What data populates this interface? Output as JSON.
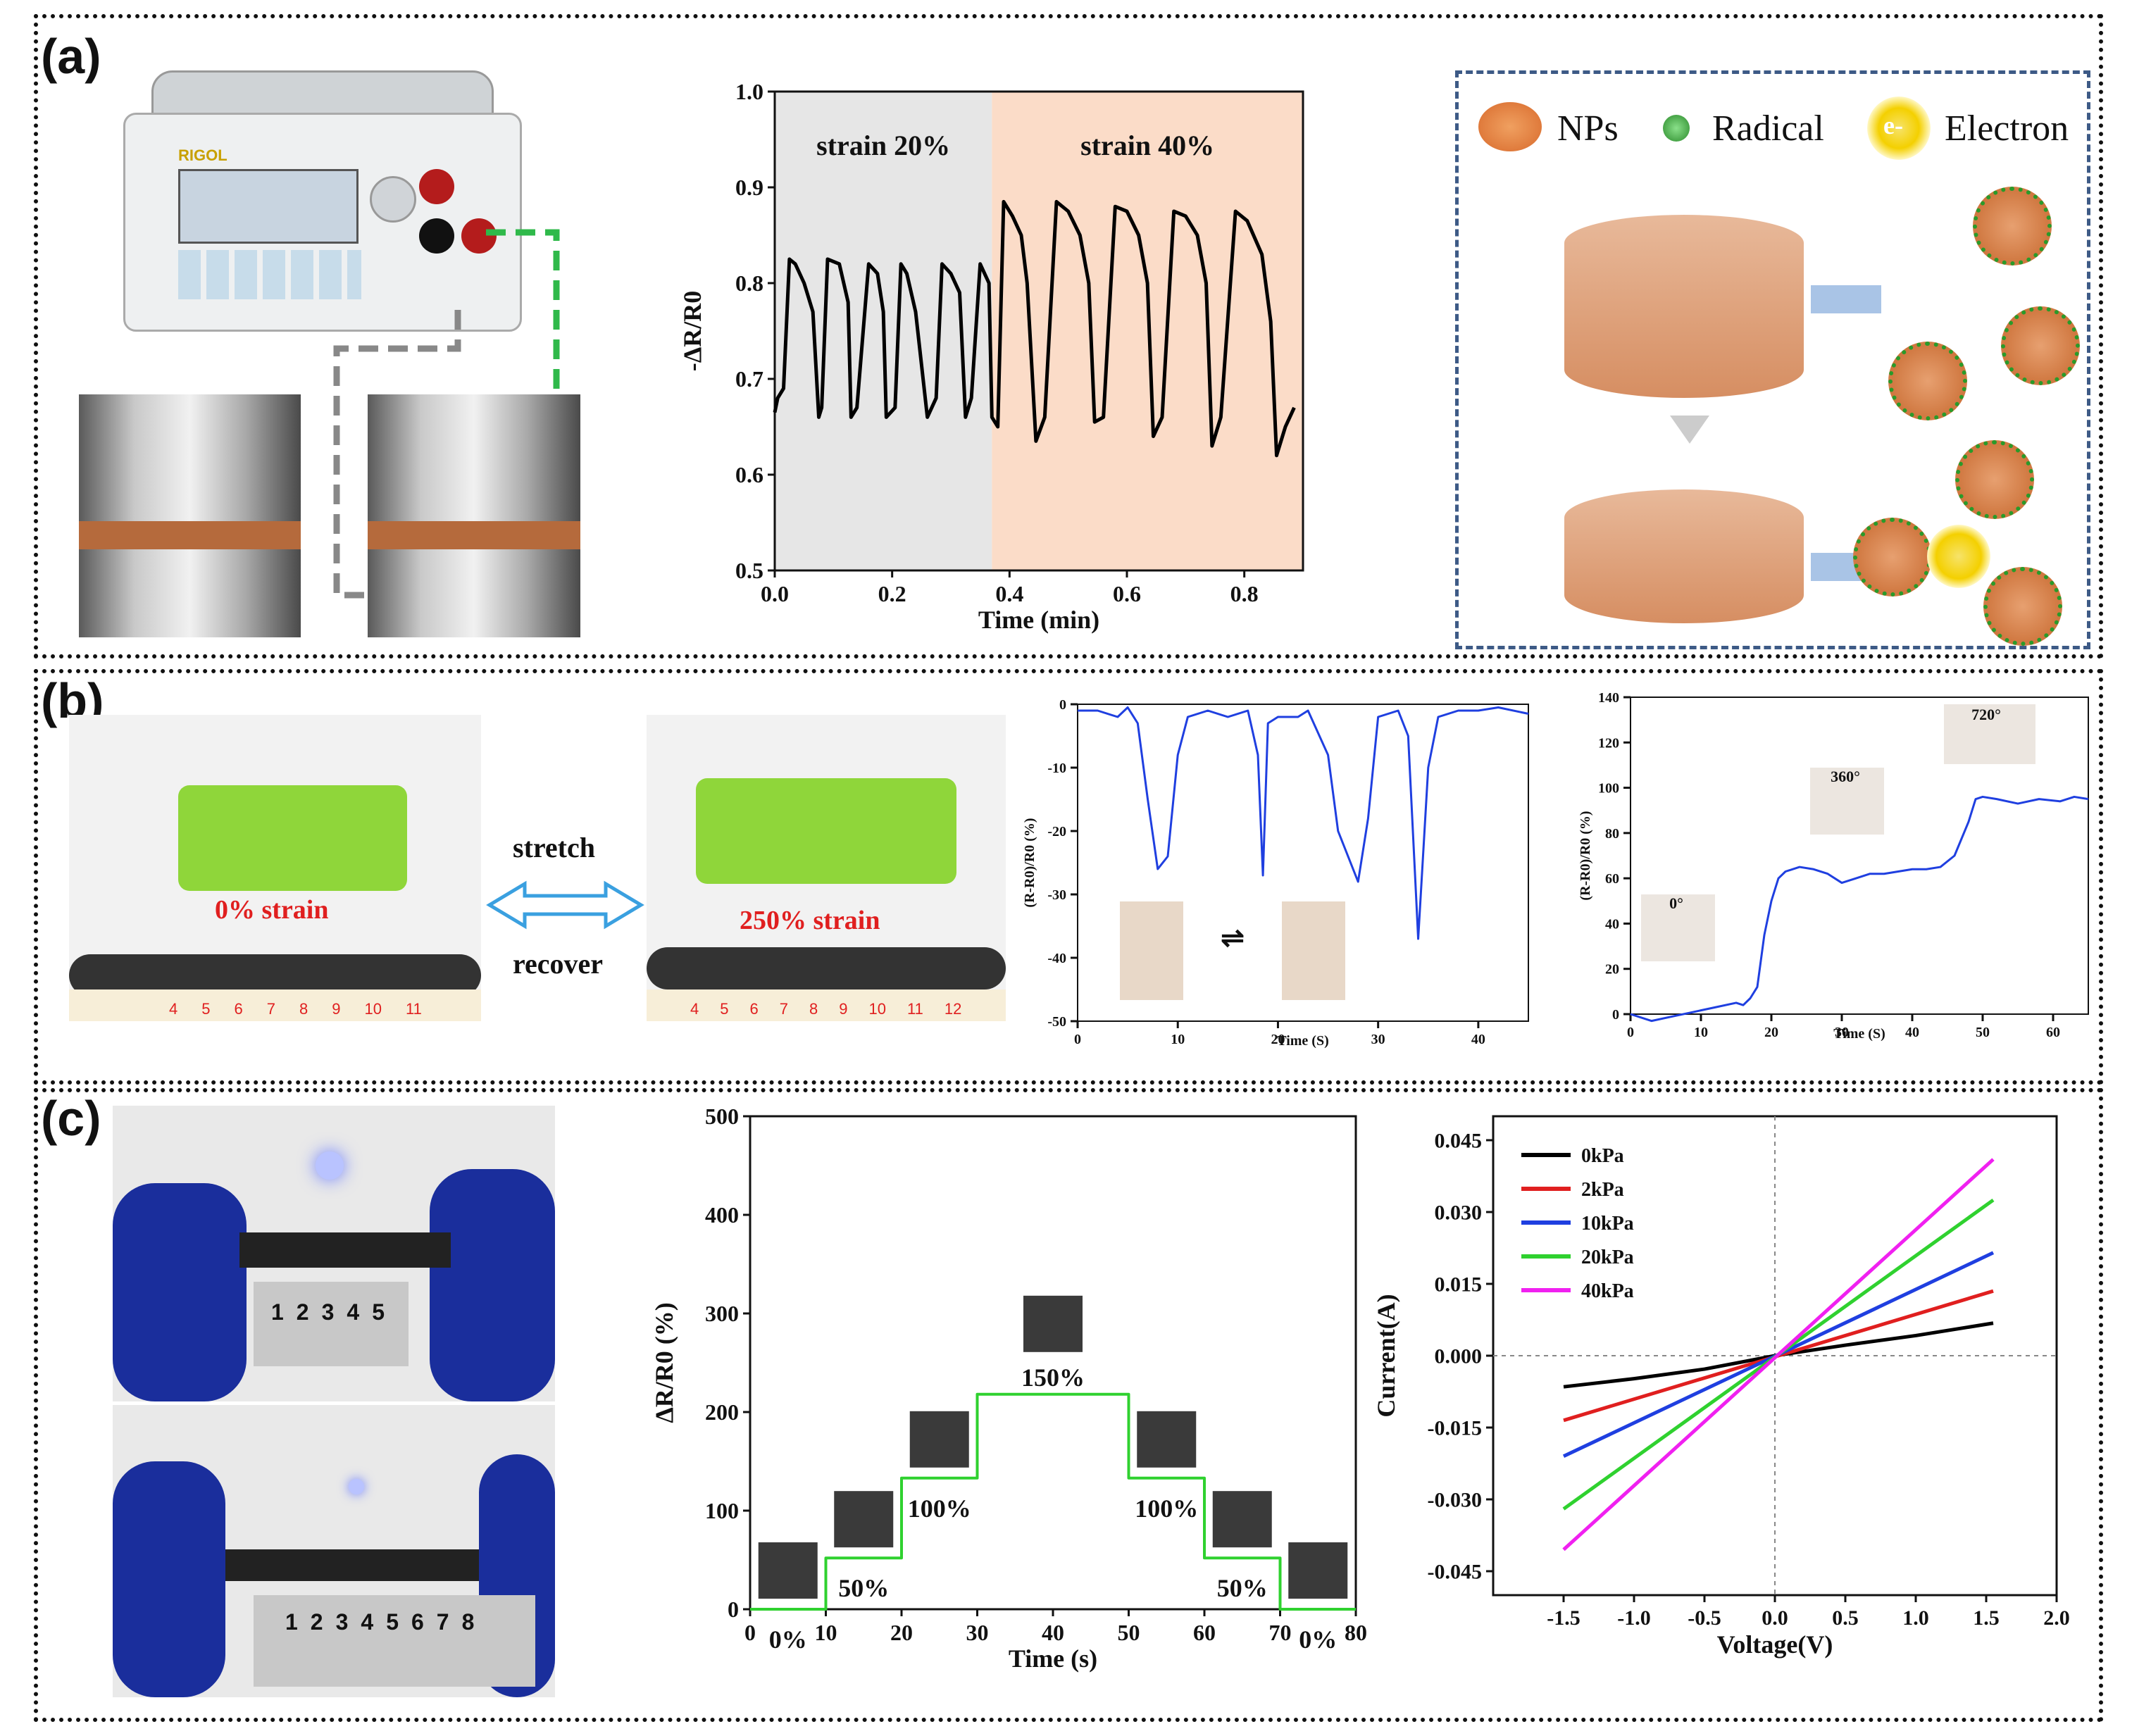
{
  "panels": {
    "a": "(a)",
    "b": "(b)",
    "c": "(c)"
  },
  "colors": {
    "black": "#000000",
    "blue": "#1f3fe0",
    "green": "#2fd12f",
    "red": "#e01f1f",
    "magenta": "#f020f0",
    "gray_zone": "#e6e6e6",
    "peach_zone": "#fbdcc8"
  },
  "panel_a": {
    "meter_brand": "RIGOL",
    "legend": {
      "nps": "NPs",
      "radical": "Radical",
      "electron": "Electron",
      "e_symbol": "e-"
    },
    "chart_data": {
      "type": "line",
      "title": "",
      "xlabel": "Time (min)",
      "ylabel": "-ΔR/R0",
      "xlim": [
        0.0,
        0.9
      ],
      "ylim": [
        0.5,
        1.0
      ],
      "xticks": [
        "0.0",
        "0.2",
        "0.4",
        "0.6",
        "0.8"
      ],
      "yticks": [
        "0.5",
        "0.6",
        "0.7",
        "0.8",
        "0.9",
        "1.0"
      ],
      "zone_split": 0.37,
      "annotations": [
        "strain 20%",
        "strain 40%"
      ],
      "series": [
        {
          "name": "-ΔR/R0",
          "x": [
            0.0,
            0.005,
            0.015,
            0.025,
            0.035,
            0.05,
            0.065,
            0.075,
            0.08,
            0.09,
            0.11,
            0.125,
            0.13,
            0.14,
            0.16,
            0.175,
            0.185,
            0.19,
            0.205,
            0.215,
            0.225,
            0.24,
            0.26,
            0.275,
            0.285,
            0.3,
            0.315,
            0.325,
            0.335,
            0.35,
            0.365,
            0.37,
            0.38,
            0.39,
            0.405,
            0.42,
            0.43,
            0.445,
            0.46,
            0.48,
            0.5,
            0.52,
            0.535,
            0.545,
            0.56,
            0.58,
            0.6,
            0.62,
            0.635,
            0.645,
            0.66,
            0.68,
            0.7,
            0.72,
            0.735,
            0.745,
            0.76,
            0.785,
            0.805,
            0.83,
            0.845,
            0.855,
            0.87,
            0.885
          ],
          "y": [
            0.665,
            0.68,
            0.69,
            0.825,
            0.82,
            0.8,
            0.77,
            0.66,
            0.67,
            0.825,
            0.82,
            0.78,
            0.66,
            0.67,
            0.82,
            0.81,
            0.77,
            0.66,
            0.67,
            0.82,
            0.81,
            0.77,
            0.66,
            0.68,
            0.82,
            0.81,
            0.79,
            0.66,
            0.68,
            0.82,
            0.8,
            0.66,
            0.65,
            0.885,
            0.87,
            0.85,
            0.8,
            0.635,
            0.66,
            0.885,
            0.875,
            0.85,
            0.8,
            0.655,
            0.66,
            0.88,
            0.875,
            0.85,
            0.8,
            0.64,
            0.66,
            0.875,
            0.87,
            0.85,
            0.8,
            0.63,
            0.66,
            0.875,
            0.865,
            0.83,
            0.76,
            0.62,
            0.65,
            0.67
          ]
        }
      ]
    }
  },
  "panel_b": {
    "stretch_label": "stretch",
    "recover_label": "recover",
    "strain_0": "0% strain",
    "strain_250": "250% strain",
    "ruler_left": [
      "4",
      "5",
      "6",
      "7",
      "8",
      "9",
      "10",
      "11"
    ],
    "ruler_right": [
      "4",
      "5",
      "6",
      "7",
      "8",
      "9",
      "10",
      "11",
      "12"
    ],
    "chart1": {
      "type": "line",
      "xlabel": "Time (S)",
      "ylabel": "(R-R0)/R0 (%)",
      "xlim": [
        0,
        45
      ],
      "ylim": [
        -50,
        0
      ],
      "xticks": [
        "0",
        "10",
        "20",
        "30",
        "40"
      ],
      "yticks": [
        "0",
        "-10",
        "-20",
        "-30",
        "-40",
        "-50"
      ],
      "series": [
        {
          "name": "blue",
          "x": [
            0,
            2,
            4,
            5,
            6,
            7,
            8,
            9,
            10,
            11,
            13,
            15,
            17,
            18,
            18.5,
            19,
            20,
            22,
            23,
            25,
            26,
            27,
            28,
            29,
            30,
            32,
            33,
            34,
            35,
            36,
            38,
            40,
            42,
            45
          ],
          "y": [
            -1,
            -1,
            -2,
            -0.5,
            -3,
            -15,
            -26,
            -24,
            -8,
            -2,
            -1,
            -2,
            -1,
            -8,
            -27,
            -3,
            -2,
            -2,
            -1,
            -8,
            -20,
            -24,
            -28,
            -18,
            -2,
            -1,
            -5,
            -37,
            -10,
            -2,
            -1,
            -1,
            -0.5,
            -1.5
          ]
        }
      ]
    },
    "chart2": {
      "type": "line",
      "xlabel": "Time (S)",
      "ylabel": "(R-R0)/R0 (%)",
      "xlim": [
        0,
        65
      ],
      "ylim": [
        0,
        140
      ],
      "xticks": [
        "0",
        "10",
        "20",
        "30",
        "40",
        "50",
        "60"
      ],
      "yticks": [
        "0",
        "20",
        "40",
        "60",
        "80",
        "100",
        "120",
        "140"
      ],
      "inset_labels": [
        "0°",
        "360°",
        "720°"
      ],
      "series": [
        {
          "name": "blue",
          "x": [
            0,
            3,
            6,
            9,
            12,
            15,
            16,
            17,
            18,
            19,
            20,
            21,
            22,
            24,
            26,
            28,
            30,
            32,
            34,
            36,
            38,
            40,
            42,
            44,
            46,
            48,
            49,
            50,
            52,
            55,
            58,
            61,
            63,
            65
          ],
          "y": [
            0,
            -3,
            -1,
            1,
            3,
            5,
            4,
            7,
            12,
            35,
            50,
            60,
            63,
            65,
            64,
            62,
            58,
            60,
            62,
            62,
            63,
            64,
            64,
            65,
            70,
            85,
            95,
            96,
            95,
            93,
            95,
            94,
            96,
            95
          ]
        }
      ]
    }
  },
  "panel_c": {
    "ruler_top": [
      "1",
      "2",
      "3",
      "4",
      "5"
    ],
    "ruler_bottom": [
      "1",
      "2",
      "3",
      "4",
      "5",
      "6",
      "7",
      "8"
    ],
    "step_chart": {
      "type": "line",
      "xlabel": "Time (s)",
      "ylabel": "ΔR/R0 (%)",
      "xlim": [
        0,
        80
      ],
      "ylim": [
        0,
        500
      ],
      "xticks": [
        "0",
        "10",
        "20",
        "30",
        "40",
        "50",
        "60",
        "70",
        "80"
      ],
      "yticks": [
        "0",
        "100",
        "200",
        "300",
        "400",
        "500"
      ],
      "step_labels": [
        "0%",
        "50%",
        "100%",
        "150%",
        "100%",
        "50%",
        "0%"
      ],
      "series": [
        {
          "name": "green",
          "x": [
            0,
            10,
            10,
            20,
            20,
            30,
            30,
            50,
            50,
            60,
            60,
            70,
            70,
            80
          ],
          "y": [
            0,
            0,
            52,
            52,
            133,
            133,
            218,
            218,
            133,
            133,
            52,
            52,
            0,
            0
          ]
        }
      ]
    },
    "iv_chart": {
      "type": "line",
      "xlabel": "Voltage(V)",
      "ylabel": "Current(A)",
      "xlim": [
        -2.0,
        2.0
      ],
      "ylim": [
        -0.05,
        0.05
      ],
      "xticks": [
        "-1.5",
        "-1.0",
        "-0.5",
        "0.0",
        "0.5",
        "1.0",
        "1.5",
        "2.0"
      ],
      "yticks": [
        "0.045",
        "0.030",
        "0.015",
        "0.000",
        "-0.015",
        "-0.030",
        "-0.045"
      ],
      "series": [
        {
          "name": "0kPa",
          "x": [
            -1.5,
            -1.0,
            -0.5,
            0.0,
            0.5,
            1.0,
            1.55
          ],
          "y": [
            -0.0065,
            -0.0048,
            -0.0028,
            0.0,
            0.0022,
            0.0042,
            0.0068
          ]
        },
        {
          "name": "2kPa",
          "x": [
            -1.5,
            1.55
          ],
          "y": [
            -0.0135,
            0.0135
          ]
        },
        {
          "name": "10kPa",
          "x": [
            -1.5,
            1.55
          ],
          "y": [
            -0.021,
            0.0215
          ]
        },
        {
          "name": "20kPa",
          "x": [
            -1.5,
            1.55
          ],
          "y": [
            -0.032,
            0.0325
          ]
        },
        {
          "name": "40kPa",
          "x": [
            -1.5,
            1.55
          ],
          "y": [
            -0.0405,
            0.041
          ]
        }
      ]
    }
  }
}
